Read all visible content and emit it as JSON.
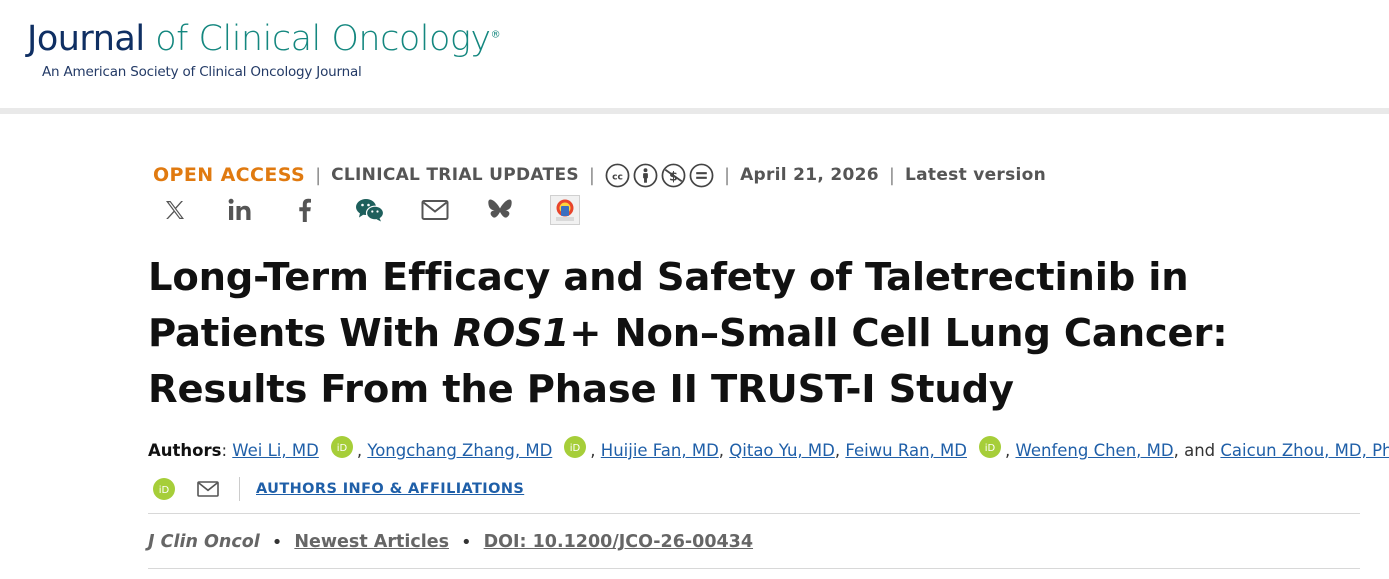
{
  "header": {
    "logo_journal": "Journal",
    "logo_rest": " of Clinical Oncology",
    "logo_registered": "®",
    "logo_subtitle": "An American Society of Clinical Oncology Journal"
  },
  "meta": {
    "access": "OPEN ACCESS",
    "category": "CLINICAL TRIAL UPDATES",
    "license_icons": [
      "cc-icon",
      "by-icon",
      "nc-icon",
      "nd-icon"
    ],
    "date": "April 21, 2026",
    "version": "Latest version",
    "separator": "|"
  },
  "share": [
    "x-icon",
    "linkedin-icon",
    "facebook-icon",
    "wechat-icon",
    "email-icon",
    "bluesky-icon",
    "mendeley-icon"
  ],
  "article": {
    "title_part1": "Long-Term Efficacy and Safety of Taletrectinib in Patients With ",
    "title_gene": "ROS1",
    "title_part2": "+ Non–Small Cell Lung Cancer: Results From the Phase II TRUST-I Study"
  },
  "authors": {
    "label": "Authors",
    "colon": ":",
    "list": [
      {
        "name": "Wei Li, MD",
        "orcid": true
      },
      {
        "name": "Yongchang Zhang, MD",
        "orcid": true
      },
      {
        "name": "Huijie Fan, MD",
        "orcid": false
      },
      {
        "name": "Qitao Yu, MD",
        "orcid": false
      },
      {
        "name": "Feiwu Ran, MD",
        "orcid": true
      },
      {
        "name": "Wenfeng Chen, MD",
        "orcid": false
      },
      {
        "name": "Caicun Zhou, MD, PhD",
        "orcid": true
      }
    ],
    "comma": ",",
    "and": "and",
    "affiliations_link": "AUTHORS INFO & AFFILIATIONS"
  },
  "citation": {
    "journal": "J Clin Oncol",
    "bullet": "•",
    "section": "Newest Articles",
    "doi": "DOI: 10.1200/JCO-26-00434"
  },
  "colors": {
    "journal_navy": "#0f2f63",
    "journal_teal": "#14877f",
    "open_access": "#e07a10",
    "link_blue": "#1f5fa8",
    "orcid_green": "#a6ce39"
  }
}
